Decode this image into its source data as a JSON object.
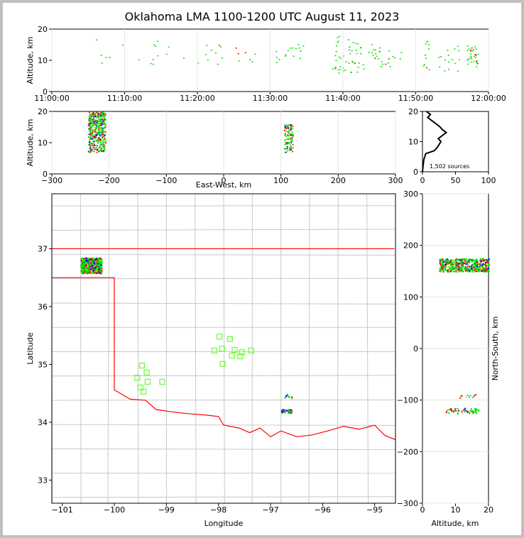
{
  "title": "Oklahoma LMA 1100-1200 UTC August 11, 2023",
  "colors": {
    "early": "#0000ff",
    "mid": "#00e000",
    "late": "#ff0000",
    "boundary": "#ff0000",
    "county": "#c8c8c8",
    "station": "#66ff33"
  },
  "chart_data": [
    {
      "id": "time_altitude",
      "type": "scatter",
      "ylabel": "Altitude, km",
      "x_ticks": [
        "11:00:00",
        "11:10:00",
        "11:20:00",
        "11:30:00",
        "11:40:00",
        "11:50:00",
        "12:00:00"
      ],
      "xlim_minutes": [
        0,
        60
      ],
      "ylim": [
        0,
        20
      ],
      "y_ticks": [
        "0",
        "10",
        "20"
      ],
      "clusters": [
        {
          "t": [
            4,
            16
          ],
          "z": [
            7,
            18
          ],
          "n": 16
        },
        {
          "t": [
            18,
            26
          ],
          "z": [
            8,
            18
          ],
          "n": 14
        },
        {
          "t": [
            26,
            32
          ],
          "z": [
            7,
            13
          ],
          "n": 8
        },
        {
          "t": [
            32,
            35
          ],
          "z": [
            10,
            16
          ],
          "n": 12
        },
        {
          "t": [
            38,
            42
          ],
          "z": [
            6,
            18
          ],
          "n": 40
        },
        {
          "t": [
            42,
            45
          ],
          "z": [
            7,
            16
          ],
          "n": 20
        },
        {
          "t": [
            45,
            48
          ],
          "z": [
            8,
            14
          ],
          "n": 12
        },
        {
          "t": [
            51,
            52
          ],
          "z": [
            7,
            17
          ],
          "n": 10
        },
        {
          "t": [
            53,
            56
          ],
          "z": [
            6,
            15
          ],
          "n": 16
        },
        {
          "t": [
            57,
            58.5
          ],
          "z": [
            8,
            15
          ],
          "n": 30
        }
      ]
    },
    {
      "id": "ew_altitude",
      "type": "scatter",
      "xlabel": "East-West, km",
      "ylabel": "Altitude, km",
      "xlim": [
        -300,
        300
      ],
      "ylim": [
        0,
        20
      ],
      "x_ticks": [
        "−300",
        "−200",
        "−100",
        "0",
        "100",
        "200",
        "300"
      ],
      "y_ticks": [
        "0",
        "10",
        "20"
      ],
      "clusters": [
        {
          "x": [
            -237,
            -207
          ],
          "z": [
            7,
            20
          ],
          "n": 500
        },
        {
          "x": [
            105,
            120
          ],
          "z": [
            7,
            16
          ],
          "n": 120
        }
      ]
    },
    {
      "id": "altitude_histogram",
      "type": "line",
      "annotation": "1,502 sources",
      "xlim": [
        0,
        100
      ],
      "ylim": [
        0,
        20
      ],
      "x_ticks": [
        "0",
        "50",
        "100"
      ],
      "y_ticks": [
        "0",
        "10",
        "20"
      ],
      "profile": [
        {
          "z": 0,
          "n": 0
        },
        {
          "z": 2,
          "n": 1
        },
        {
          "z": 4,
          "n": 2
        },
        {
          "z": 6,
          "n": 5
        },
        {
          "z": 7,
          "n": 18
        },
        {
          "z": 8,
          "n": 22
        },
        {
          "z": 9,
          "n": 25
        },
        {
          "z": 10,
          "n": 28
        },
        {
          "z": 11,
          "n": 24
        },
        {
          "z": 12,
          "n": 30
        },
        {
          "z": 13,
          "n": 36
        },
        {
          "z": 14,
          "n": 30
        },
        {
          "z": 15,
          "n": 26
        },
        {
          "z": 16,
          "n": 20
        },
        {
          "z": 17,
          "n": 14
        },
        {
          "z": 18,
          "n": 8
        },
        {
          "z": 19,
          "n": 12
        },
        {
          "z": 20,
          "n": 6
        }
      ]
    },
    {
      "id": "plan_view",
      "type": "scatter",
      "xlabel": "Longitude",
      "ylabel": "Latitude",
      "xlim": [
        -101.2,
        -94.6
      ],
      "ylim": [
        32.6,
        37.95
      ],
      "x_ticks": [
        {
          "v": -101,
          "label": "−101"
        },
        {
          "v": -100,
          "label": "−100"
        },
        {
          "v": -99,
          "label": "−99"
        },
        {
          "v": -98,
          "label": "−98"
        },
        {
          "v": -97,
          "label": "−97"
        },
        {
          "v": -96,
          "label": "−96"
        },
        {
          "v": -95,
          "label": "−95"
        }
      ],
      "y_ticks": [
        {
          "v": 33,
          "label": "33"
        },
        {
          "v": 34,
          "label": "34"
        },
        {
          "v": 35,
          "label": "35"
        },
        {
          "v": 36,
          "label": "36"
        },
        {
          "v": 37,
          "label": "37"
        }
      ],
      "clusters": [
        {
          "lon": [
            -100.65,
            -100.25
          ],
          "lat": [
            36.58,
            36.85
          ],
          "n": 500
        },
        {
          "lon": [
            -96.8,
            -96.6
          ],
          "lat": [
            34.17,
            34.23
          ],
          "n": 60
        },
        {
          "lon": [
            -96.75,
            -96.6
          ],
          "lat": [
            34.42,
            34.5
          ],
          "n": 10
        }
      ],
      "stations": [
        {
          "lon": -97.98,
          "lat": 35.48
        },
        {
          "lon": -97.78,
          "lat": 35.44
        },
        {
          "lon": -98.08,
          "lat": 35.24
        },
        {
          "lon": -97.93,
          "lat": 35.27
        },
        {
          "lon": -97.69,
          "lat": 35.25
        },
        {
          "lon": -97.55,
          "lat": 35.21
        },
        {
          "lon": -97.37,
          "lat": 35.24
        },
        {
          "lon": -97.74,
          "lat": 35.15
        },
        {
          "lon": -97.58,
          "lat": 35.14
        },
        {
          "lon": -97.92,
          "lat": 35.01
        },
        {
          "lon": -99.47,
          "lat": 34.98
        },
        {
          "lon": -99.38,
          "lat": 34.86
        },
        {
          "lon": -99.56,
          "lat": 34.77
        },
        {
          "lon": -99.36,
          "lat": 34.7
        },
        {
          "lon": -99.08,
          "lat": 34.7
        },
        {
          "lon": -99.5,
          "lat": 34.6
        },
        {
          "lon": -99.44,
          "lat": 34.53
        }
      ]
    },
    {
      "id": "altitude_ns",
      "type": "scatter",
      "xlabel": "Altitude, km",
      "ylabel": "North-South, km",
      "xlim": [
        0,
        20
      ],
      "ylim": [
        -300,
        300
      ],
      "x_ticks": [
        "0",
        "10",
        "20"
      ],
      "y_ticks": [
        "−300",
        "−200",
        "−100",
        "0",
        "100",
        "200",
        "300"
      ],
      "clusters": [
        {
          "z": [
            5,
            20
          ],
          "y": [
            150,
            175
          ],
          "n": 500
        },
        {
          "z": [
            7,
            17
          ],
          "y": [
            -125,
            -115
          ],
          "n": 60
        },
        {
          "z": [
            9,
            16
          ],
          "y": [
            -95,
            -88
          ],
          "n": 10
        }
      ]
    }
  ]
}
